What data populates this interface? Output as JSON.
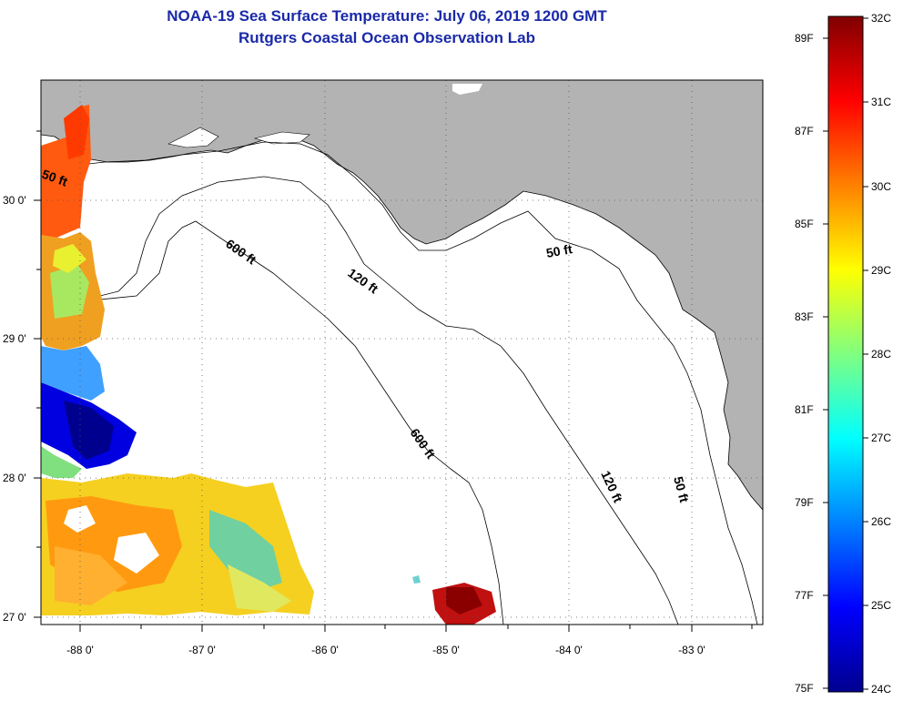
{
  "header": {
    "title": "NOAA-19 Sea Surface Temperature:  July 06, 2019 1200 GMT",
    "subtitle": "Rutgers Coastal Ocean Observation Lab"
  },
  "map": {
    "lon_labels": [
      "-88 0'",
      "-87 0'",
      "-86 0'",
      "-85 0'",
      "-84 0'",
      "-83 0'"
    ],
    "lat_labels": [
      "30 0'",
      "29 0'",
      "28 0'",
      "27 0'"
    ],
    "contour_labels": [
      "50 ft",
      "600 ft",
      "120 ft",
      "50 ft",
      "600 ft",
      "120 ft",
      "50 ft"
    ],
    "land_color": "#b3b3b3",
    "ocean_color": "#ffffff"
  },
  "colorbar": {
    "celsius_labels": [
      "32C",
      "31C",
      "30C",
      "29C",
      "28C",
      "27C",
      "26C",
      "25C",
      "24C"
    ],
    "fahrenheit_labels": [
      "89F",
      "87F",
      "85F",
      "83F",
      "81F",
      "79F",
      "77F",
      "75F"
    ],
    "colors": [
      "#800000",
      "#ff0000",
      "#ff8000",
      "#ffff00",
      "#80ff80",
      "#00ffff",
      "#0080ff",
      "#0000ff",
      "#00008f"
    ]
  }
}
